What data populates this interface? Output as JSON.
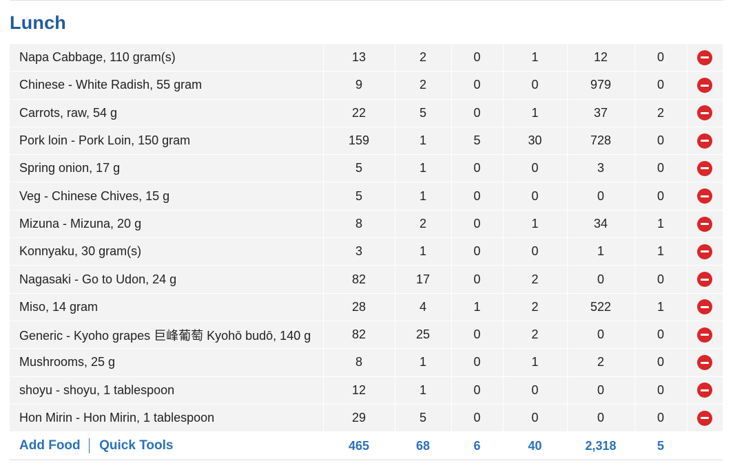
{
  "meal": {
    "title": "Lunch"
  },
  "entries": [
    {
      "food": "Napa Cabbage, 110 gram(s)",
      "values": [
        "13",
        "2",
        "0",
        "1",
        "12",
        "0"
      ]
    },
    {
      "food": "Chinese - White Radish, 55 gram",
      "values": [
        "9",
        "2",
        "0",
        "0",
        "979",
        "0"
      ]
    },
    {
      "food": "Carrots, raw, 54 g",
      "values": [
        "22",
        "5",
        "0",
        "1",
        "37",
        "2"
      ]
    },
    {
      "food": "Pork loin - Pork Loin, 150 gram",
      "values": [
        "159",
        "1",
        "5",
        "30",
        "728",
        "0"
      ]
    },
    {
      "food": "Spring onion, 17 g",
      "values": [
        "5",
        "1",
        "0",
        "0",
        "3",
        "0"
      ]
    },
    {
      "food": "Veg - Chinese Chives, 15 g",
      "values": [
        "5",
        "1",
        "0",
        "0",
        "0",
        "0"
      ]
    },
    {
      "food": "Mizuna - Mizuna, 20 g",
      "values": [
        "8",
        "2",
        "0",
        "1",
        "34",
        "1"
      ]
    },
    {
      "food": "Konnyaku, 30 gram(s)",
      "values": [
        "3",
        "1",
        "0",
        "0",
        "1",
        "1"
      ]
    },
    {
      "food": "Nagasaki - Go to Udon, 24 g",
      "values": [
        "82",
        "17",
        "0",
        "2",
        "0",
        "0"
      ]
    },
    {
      "food": "Miso, 14 gram",
      "values": [
        "28",
        "4",
        "1",
        "2",
        "522",
        "1"
      ]
    },
    {
      "food": "Generic - Kyoho grapes 巨峰葡萄 Kyohō budō, 140 g",
      "values": [
        "82",
        "25",
        "0",
        "2",
        "0",
        "0"
      ]
    },
    {
      "food": "Mushrooms, 25 g",
      "values": [
        "8",
        "1",
        "0",
        "1",
        "2",
        "0"
      ]
    },
    {
      "food": "shoyu - shoyu, 1 tablespoon",
      "values": [
        "12",
        "1",
        "0",
        "0",
        "0",
        "0"
      ]
    },
    {
      "food": "Hon Mirin - Hon Mirin, 1 tablespoon",
      "values": [
        "29",
        "5",
        "0",
        "0",
        "0",
        "0"
      ]
    }
  ],
  "footer": {
    "add_food": "Add Food",
    "quick_tools": "Quick Tools",
    "totals": [
      "465",
      "68",
      "6",
      "40",
      "2,318",
      "5"
    ]
  },
  "icons": {
    "delete": "remove-circle-icon"
  },
  "colors": {
    "title": "#1f5a9e",
    "link": "#2a72b8",
    "delete": "#d9262a",
    "row_bg": "#f3f3f3"
  }
}
